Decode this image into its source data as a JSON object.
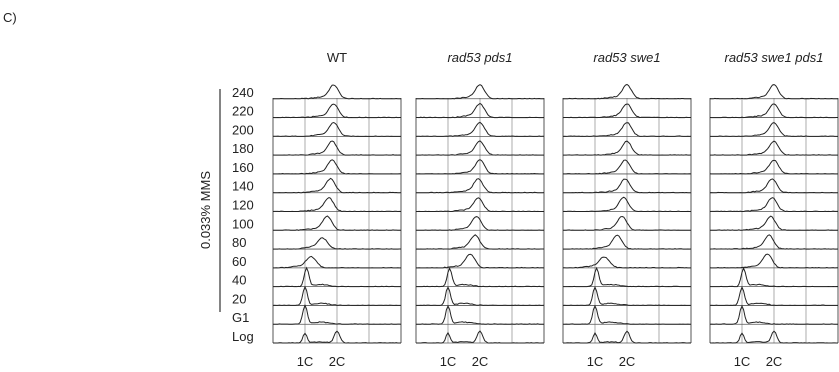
{
  "figure": {
    "panel_label": "C)",
    "treatment_label": "0.033% MMS"
  },
  "chart_data": {
    "type": "line",
    "title": "",
    "rows": [
      "240",
      "220",
      "200",
      "180",
      "160",
      "140",
      "120",
      "100",
      "80",
      "60",
      "40",
      "20",
      "G1",
      "Log"
    ],
    "x_ticks": [
      "1C",
      "2C"
    ],
    "grid": true,
    "panels": [
      {
        "name": "WT",
        "italic": false,
        "row_peak_positions": [
          1.9,
          1.9,
          1.9,
          1.85,
          1.85,
          1.8,
          1.75,
          1.7,
          1.55,
          1.2,
          1.05,
          1.0,
          1.0,
          1.0
        ]
      },
      {
        "name": "rad53 pds1",
        "italic": true,
        "row_peak_positions": [
          2.0,
          2.0,
          2.0,
          2.0,
          2.0,
          1.95,
          1.95,
          1.9,
          1.85,
          1.7,
          1.05,
          1.0,
          1.0,
          1.0
        ]
      },
      {
        "name": "rad53 swe1",
        "italic": true,
        "row_peak_positions": [
          2.0,
          2.0,
          2.0,
          2.0,
          1.95,
          1.95,
          1.9,
          1.85,
          1.7,
          1.3,
          1.05,
          1.0,
          1.0,
          1.0
        ]
      },
      {
        "name": "rad53 swe1 pds1",
        "italic": true,
        "row_peak_positions": [
          2.0,
          2.0,
          2.0,
          2.0,
          2.0,
          1.95,
          1.95,
          1.9,
          1.85,
          1.8,
          1.05,
          1.0,
          1.0,
          1.0
        ]
      }
    ]
  }
}
